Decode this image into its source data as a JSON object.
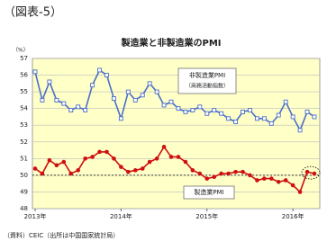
{
  "header": {
    "title": "（図表-5）"
  },
  "chart_data": {
    "type": "line",
    "title": "製造業と非製造業のPMI",
    "y_label": "（%）",
    "categories": [
      "2013年",
      null,
      null,
      null,
      null,
      null,
      null,
      null,
      null,
      null,
      null,
      null,
      "2014年",
      null,
      null,
      null,
      null,
      null,
      null,
      null,
      null,
      null,
      null,
      null,
      "2015年",
      null,
      null,
      null,
      null,
      null,
      null,
      null,
      null,
      null,
      null,
      null,
      "2016年",
      null,
      null,
      null
    ],
    "series": [
      {
        "name": "非製造業PMI",
        "note": "（商務活動指数）",
        "color": "#4a6fc8",
        "marker": "square",
        "values": [
          56.2,
          54.5,
          55.6,
          54.5,
          54.3,
          53.9,
          54.1,
          53.9,
          55.4,
          56.3,
          56.0,
          54.6,
          53.4,
          55.0,
          54.5,
          54.8,
          55.5,
          55.0,
          54.2,
          54.4,
          54.0,
          53.8,
          53.9,
          54.1,
          53.7,
          53.9,
          53.7,
          53.4,
          53.2,
          53.8,
          53.9,
          53.4,
          53.4,
          53.1,
          53.6,
          54.4,
          53.5,
          52.7,
          53.8,
          53.5
        ]
      },
      {
        "name": "製造業PMI",
        "color": "#d01010",
        "marker": "circle",
        "values": [
          50.4,
          50.1,
          50.9,
          50.6,
          50.8,
          50.1,
          50.3,
          51.0,
          51.1,
          51.4,
          51.4,
          51.0,
          50.5,
          50.2,
          50.3,
          50.4,
          50.8,
          51.0,
          51.7,
          51.1,
          51.1,
          50.8,
          50.3,
          50.1,
          49.8,
          49.9,
          50.1,
          50.1,
          50.2,
          50.2,
          50.0,
          49.7,
          49.8,
          49.8,
          49.6,
          49.7,
          49.4,
          49.0,
          50.2,
          50.1
        ]
      }
    ],
    "ylim": [
      48,
      57
    ],
    "yticks": [
      48,
      49,
      50,
      51,
      52,
      53,
      54,
      55,
      56,
      57
    ],
    "grid": true,
    "reference_line": 50,
    "source": "（資料）CEIC（出所は中国国家統計局）"
  }
}
